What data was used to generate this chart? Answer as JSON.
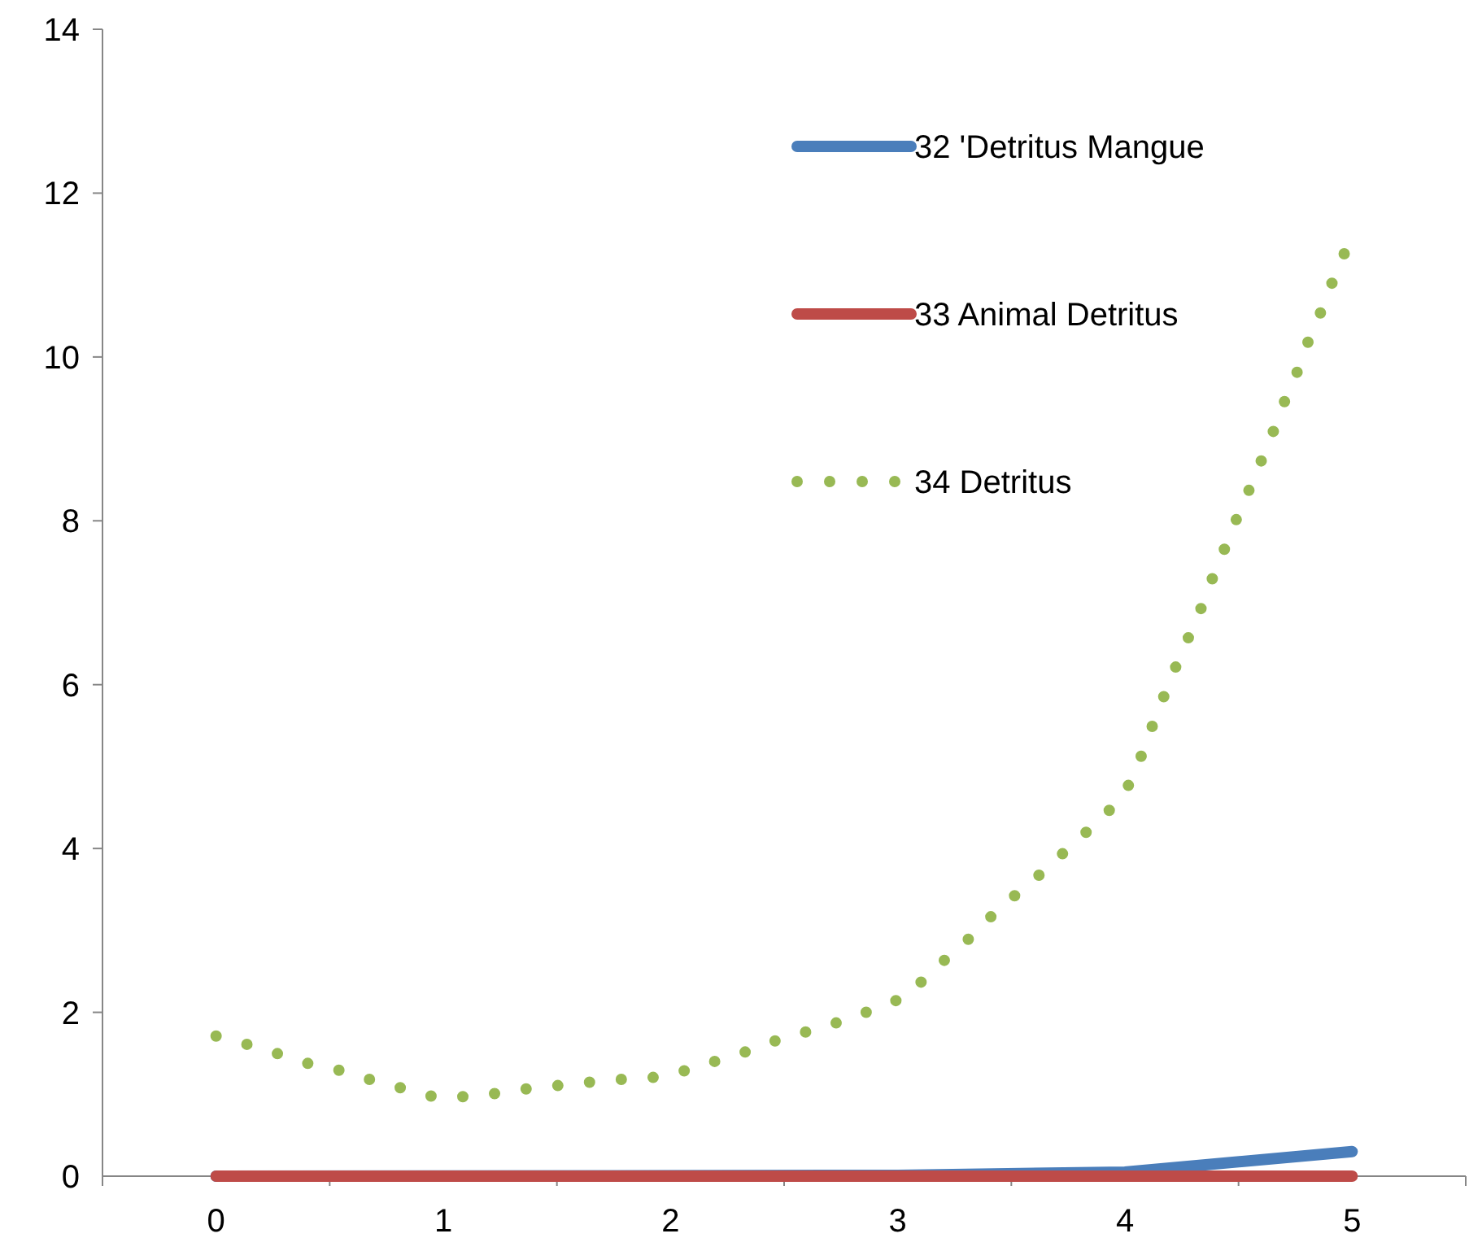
{
  "chart_data": {
    "type": "line",
    "xlim": [
      -0.5,
      5.5
    ],
    "xticks": [
      {
        "value": -0.5,
        "label": null
      },
      0,
      {
        "value": 0.5,
        "label": null
      },
      1,
      {
        "value": 1.5,
        "label": null
      },
      2,
      {
        "value": 2.5,
        "label": null
      },
      3,
      {
        "value": 3.5,
        "label": null
      },
      4,
      {
        "value": 4.5,
        "label": null
      },
      5,
      {
        "value": 5.5,
        "label": null
      }
    ],
    "ylim": [
      0,
      14
    ],
    "yticks": [
      0,
      2,
      4,
      6,
      8,
      10,
      12,
      14
    ],
    "grid": false,
    "legend": "top right",
    "marker": "none",
    "series": [
      {
        "name": "32 'Detritus Mangue",
        "color": "#4a7ebb",
        "line_style": "solid",
        "x": [
          0,
          3,
          4,
          5
        ],
        "values": [
          0,
          0.01,
          0.05,
          0.3
        ]
      },
      {
        "name": "33 Animal Detritus",
        "color": "#be4b48",
        "line_style": "solid",
        "x": [
          0,
          5
        ],
        "values": [
          0,
          0
        ]
      },
      {
        "name": "34 Detritus",
        "color": "#98b954",
        "line_style": "dotted",
        "x": [
          0,
          0.135,
          0.277,
          0.411,
          0.546,
          0.688,
          0.823,
          0.957,
          1.099,
          1.234,
          1.376,
          1.518,
          1.652,
          1.816,
          1.957,
          2.092,
          2.227,
          2.369,
          2.496,
          2.638,
          2.773,
          2.908,
          3.043,
          3.142,
          3.248,
          3.355,
          3.454,
          3.567,
          3.674,
          3.78,
          3.887,
          3.986,
          4.05,
          4.099,
          4.149,
          4.206,
          4.262,
          4.319,
          4.369,
          4.426,
          4.475,
          4.532,
          4.589,
          4.645,
          4.695,
          4.752,
          4.801,
          4.858,
          4.908,
          4.965
        ],
        "values": [
          1.71,
          1.61,
          1.49,
          1.37,
          1.29,
          1.17,
          1.07,
          0.97,
          0.97,
          1.01,
          1.07,
          1.11,
          1.15,
          1.19,
          1.21,
          1.31,
          1.43,
          1.55,
          1.69,
          1.79,
          1.91,
          2.05,
          2.2,
          2.48,
          2.74,
          3.0,
          3.3,
          3.53,
          3.81,
          4.07,
          4.35,
          4.61,
          4.96,
          5.34,
          5.7,
          6.1,
          6.47,
          6.81,
          7.19,
          7.57,
          7.92,
          8.28,
          8.66,
          9.03,
          9.41,
          9.77,
          10.15,
          10.52,
          10.88,
          11.26
        ]
      }
    ]
  }
}
